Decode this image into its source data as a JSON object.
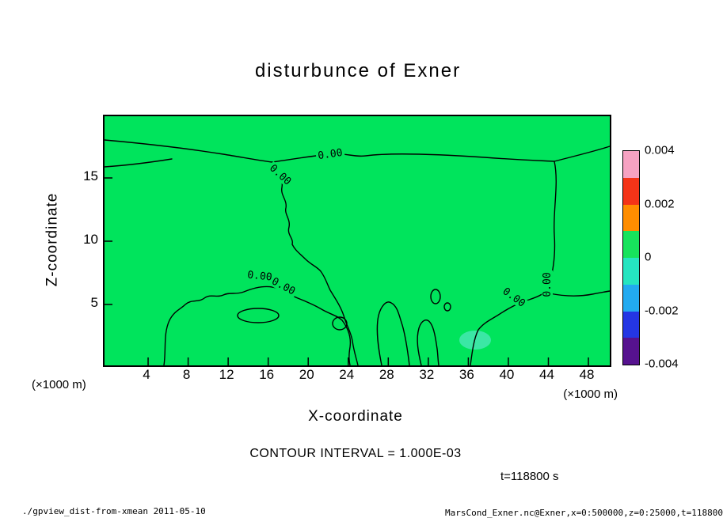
{
  "title": "disturbunce of Exner",
  "plot": {
    "xlabel": "X-coordinate",
    "ylabel": "Z-coordinate",
    "x_unit_left": "(×1000 m)",
    "x_unit_right": "(×1000 m)",
    "x_ticks": [
      "4",
      "8",
      "12",
      "16",
      "20",
      "24",
      "28",
      "32",
      "36",
      "40",
      "44",
      "48"
    ],
    "y_ticks": [
      "5",
      "10",
      "15"
    ],
    "contour_label": "0.00",
    "field_color": "#00e45c",
    "anomaly_patch_color": "#45e8b2"
  },
  "colorbar": {
    "labels": [
      "0.004",
      "0.002",
      "0",
      "-0.002",
      "-0.004"
    ],
    "segments": [
      "#f6a2c2",
      "#f43418",
      "#ff8d00",
      "#17e35c",
      "#25e5c0",
      "#22aaf0",
      "#2436e4",
      "#56128f"
    ]
  },
  "annotations": {
    "contour_interval": "CONTOUR INTERVAL = 1.000E-03",
    "time": "t=118800 s"
  },
  "footer": {
    "left": "./gpview_dist-from-xmean  2011-05-10",
    "right": "MarsCond_Exner.nc@Exner,x=0:500000,z=0:25000,t=118800"
  },
  "chart_data": {
    "type": "heatmap",
    "title": "disturbunce of Exner",
    "xlabel": "X-coordinate",
    "ylabel": "Z-coordinate",
    "x_units": "×1000 m",
    "y_units": "×1000 m",
    "xlim": [
      0,
      50
    ],
    "ylim": [
      0,
      20
    ],
    "x_ticks": [
      4,
      8,
      12,
      16,
      20,
      24,
      28,
      32,
      36,
      40,
      44,
      48
    ],
    "y_ticks": [
      5,
      10,
      15
    ],
    "contour_interval": 0.001,
    "contour_label_value": 0.0,
    "field_summary": "Exner function disturbance is approximately zero over the whole x-z domain; the 0.00 contour meanders near the top of the domain (z≈17-18), descends mid-domain around x≈13-18, runs along x≈44 vertically, and forms small closed cells in the lower half (z<8); a faint slightly-negative patch near x≈37, z≈2",
    "colorbar": {
      "min": -0.004,
      "max": 0.004,
      "tick_labels": [
        0.004,
        0.002,
        0,
        -0.002,
        -0.004
      ],
      "colors_top_to_bottom": [
        "#f6a2c2",
        "#f43418",
        "#ff8d00",
        "#17e35c",
        "#25e5c0",
        "#22aaf0",
        "#2436e4",
        "#56128f"
      ]
    },
    "time": "t=118800 s",
    "legend_position": "right colorbar",
    "grid": false
  }
}
